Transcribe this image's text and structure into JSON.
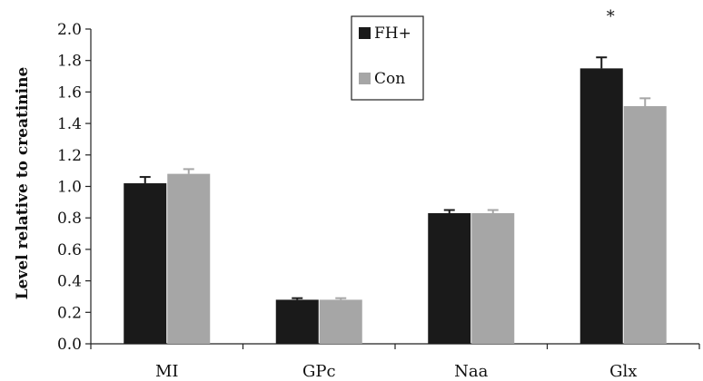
{
  "chart_data": {
    "type": "bar",
    "ylabel": "Level relative to creatinine",
    "ylim": [
      0,
      2.0
    ],
    "yticks": [
      "0.0",
      "0.2",
      "0.4",
      "0.6",
      "0.8",
      "1.0",
      "1.2",
      "1.4",
      "1.6",
      "1.8",
      "2.0"
    ],
    "categories": [
      "MI",
      "GPc",
      "Naa",
      "Glx"
    ],
    "series": [
      {
        "name": "FH+",
        "color": "#1a1a1a",
        "values": [
          1.02,
          0.28,
          0.83,
          1.75
        ],
        "errors": [
          0.04,
          0.01,
          0.02,
          0.07
        ]
      },
      {
        "name": "Con",
        "color": "#a6a6a6",
        "values": [
          1.08,
          0.28,
          0.83,
          1.51
        ],
        "errors": [
          0.03,
          0.01,
          0.02,
          0.05
        ]
      }
    ],
    "annotations": [
      {
        "category": "Glx",
        "text": "*"
      }
    ],
    "legend_position": "top-center",
    "grid": false
  }
}
